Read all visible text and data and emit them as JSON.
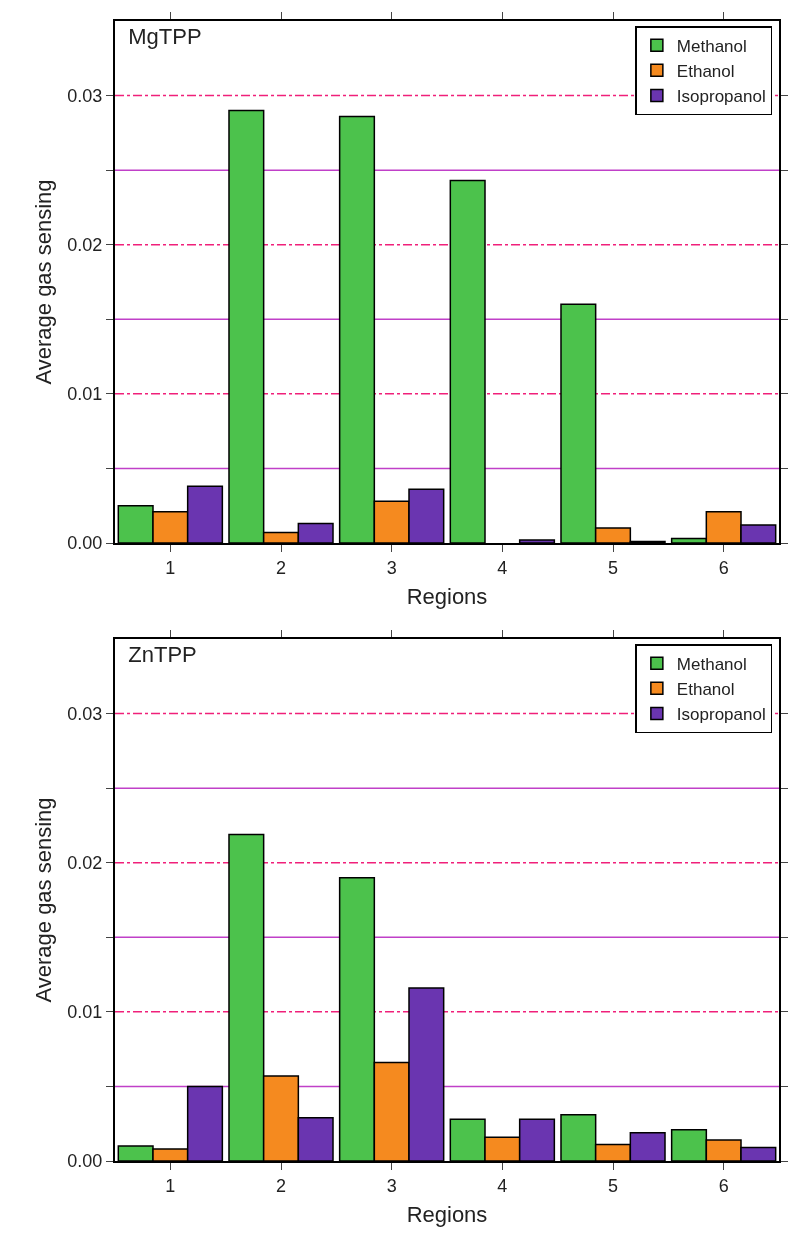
{
  "chart_data": [
    {
      "type": "bar",
      "title": "MgTPP",
      "xlabel": "Regions",
      "ylabel": "Average gas sensing",
      "categories": [
        "1",
        "2",
        "3",
        "4",
        "5",
        "6"
      ],
      "ylim": [
        0,
        0.035
      ],
      "yticks": [
        {
          "value": 0,
          "label": "0.00"
        },
        {
          "value": 0.005,
          "label": null
        },
        0.01,
        {
          "value": 0.015,
          "label": null
        },
        0.02,
        {
          "value": 0.025,
          "label": null
        },
        0.03
      ],
      "grid": "y",
      "legend": "top right",
      "series": [
        {
          "name": "Methanol",
          "color": "#4cc24c",
          "values": [
            0.0025,
            0.029,
            0.0286,
            0.0243,
            0.016,
            0.0003
          ]
        },
        {
          "name": "Ethanol",
          "color": "#f58a1f",
          "values": [
            0.0021,
            0.0007,
            0.0028,
            null,
            0.001,
            0.0021
          ]
        },
        {
          "name": "Isopropanol",
          "color": "#6a35b0",
          "values": [
            0.0038,
            0.0013,
            0.0036,
            0.0002,
            0.0001,
            0.0012
          ]
        }
      ]
    },
    {
      "type": "bar",
      "title": "ZnTPP",
      "xlabel": "Regions",
      "ylabel": "Average gas sensing",
      "categories": [
        "1",
        "2",
        "3",
        "4",
        "5",
        "6"
      ],
      "ylim": [
        0,
        0.035
      ],
      "yticks": [
        {
          "value": 0,
          "label": "0.00"
        },
        {
          "value": 0.005,
          "label": null
        },
        0.01,
        {
          "value": 0.015,
          "label": null
        },
        0.02,
        {
          "value": 0.025,
          "label": null
        },
        0.03
      ],
      "grid": "y",
      "legend": "top right",
      "series": [
        {
          "name": "Methanol",
          "color": "#4cc24c",
          "values": [
            0.001,
            0.0219,
            0.019,
            0.0028,
            0.0031,
            0.0021
          ]
        },
        {
          "name": "Ethanol",
          "color": "#f58a1f",
          "values": [
            0.0008,
            0.0057,
            0.0066,
            0.0016,
            0.0011,
            0.0014
          ]
        },
        {
          "name": "Isopropanol",
          "color": "#6a35b0",
          "values": [
            0.005,
            0.0029,
            0.0116,
            0.0028,
            0.0019,
            0.0009
          ]
        }
      ]
    }
  ]
}
